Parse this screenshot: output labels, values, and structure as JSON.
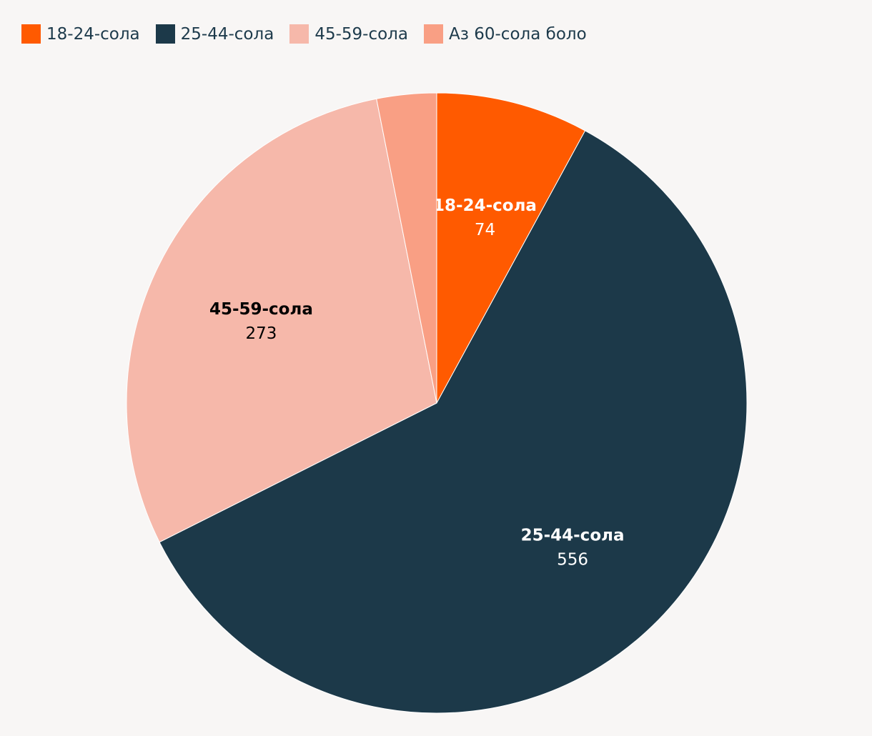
{
  "chart_data": {
    "type": "pie",
    "title": "",
    "legend_position": "top-left",
    "start_angle_deg": 0,
    "direction": "clockwise",
    "slices": [
      {
        "label": "18-24-сола",
        "value": 74,
        "color": "#ff5a00",
        "label_color": "#ffffff",
        "show_label": true
      },
      {
        "label": "25-44-сола",
        "value": 556,
        "color": "#1c3949",
        "label_color": "#ffffff",
        "show_label": true
      },
      {
        "label": "45-59-сола",
        "value": 273,
        "color": "#f6b8aa",
        "label_color": "#000000",
        "show_label": true
      },
      {
        "label": "Аз 60-сола боло",
        "value": 29,
        "color": "#f99f84",
        "label_color": "#000000",
        "show_label": false
      }
    ]
  }
}
